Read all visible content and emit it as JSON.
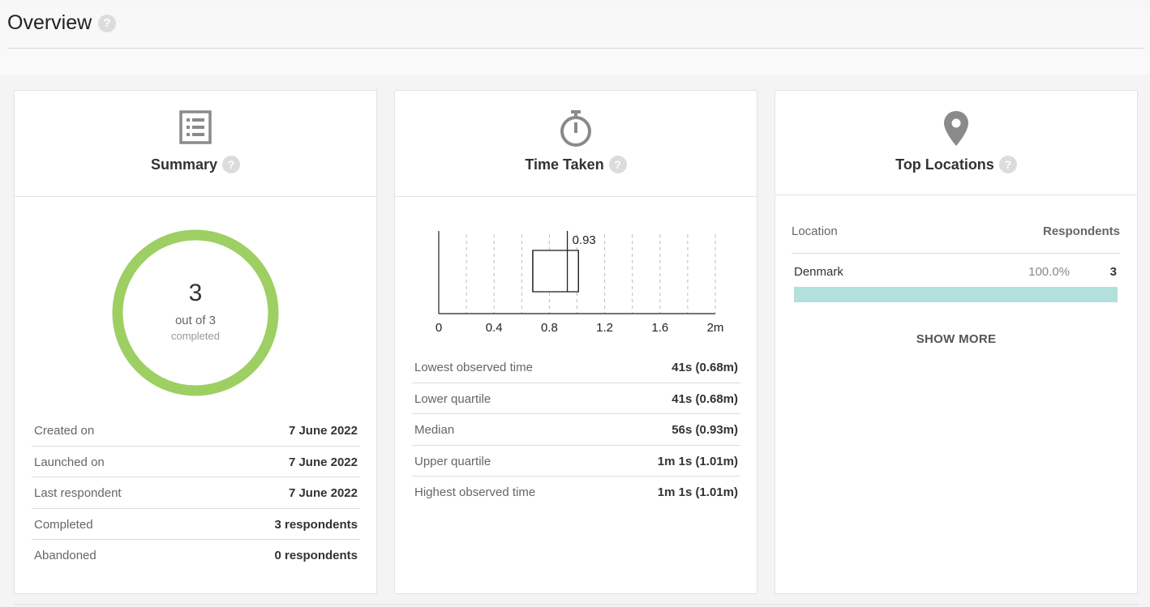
{
  "page": {
    "title": "Overview"
  },
  "summary": {
    "title": "Summary",
    "completed_count": "3",
    "out_of": "out of 3",
    "completed_label": "completed",
    "completion_fraction": 1.0,
    "ring_color": "#9dcf63",
    "rows": [
      {
        "label": "Created on",
        "value": "7 June 2022"
      },
      {
        "label": "Launched on",
        "value": "7 June 2022"
      },
      {
        "label": "Last respondent",
        "value": "7 June 2022"
      },
      {
        "label": "Completed",
        "value": "3 respondents"
      },
      {
        "label": "Abandoned",
        "value": "0 respondents"
      }
    ]
  },
  "time_taken": {
    "title": "Time Taken",
    "rows": [
      {
        "label": "Lowest observed time",
        "value": "41s (0.68m)"
      },
      {
        "label": "Lower quartile",
        "value": "41s (0.68m)"
      },
      {
        "label": "Median",
        "value": "56s (0.93m)"
      },
      {
        "label": "Upper quartile",
        "value": "1m 1s (1.01m)"
      },
      {
        "label": "Highest observed time",
        "value": "1m 1s (1.01m)"
      }
    ]
  },
  "chart_data": {
    "type": "boxplot",
    "xlabel": "",
    "ylabel": "",
    "xlim": [
      0,
      2
    ],
    "ticks": [
      0,
      0.4,
      0.8,
      1.2,
      1.6,
      2
    ],
    "tick_labels": [
      "0",
      "0.4",
      "0.8",
      "1.2",
      "1.6",
      "2m"
    ],
    "gridlines": [
      0.2,
      0.4,
      0.6,
      0.8,
      1.0,
      1.2,
      1.4,
      1.6,
      1.8,
      2.0
    ],
    "min": 0.68,
    "q1": 0.68,
    "median": 0.93,
    "q3": 1.01,
    "max": 1.01,
    "median_label": "0.93",
    "grid": true
  },
  "locations": {
    "title": "Top Locations",
    "col_location": "Location",
    "col_respondents": "Respondents",
    "items": [
      {
        "name": "Denmark",
        "percent": "100.0%",
        "count": "3",
        "fraction": 1.0
      }
    ],
    "bar_color": "#b2e0dd",
    "show_more": "SHOW MORE"
  }
}
